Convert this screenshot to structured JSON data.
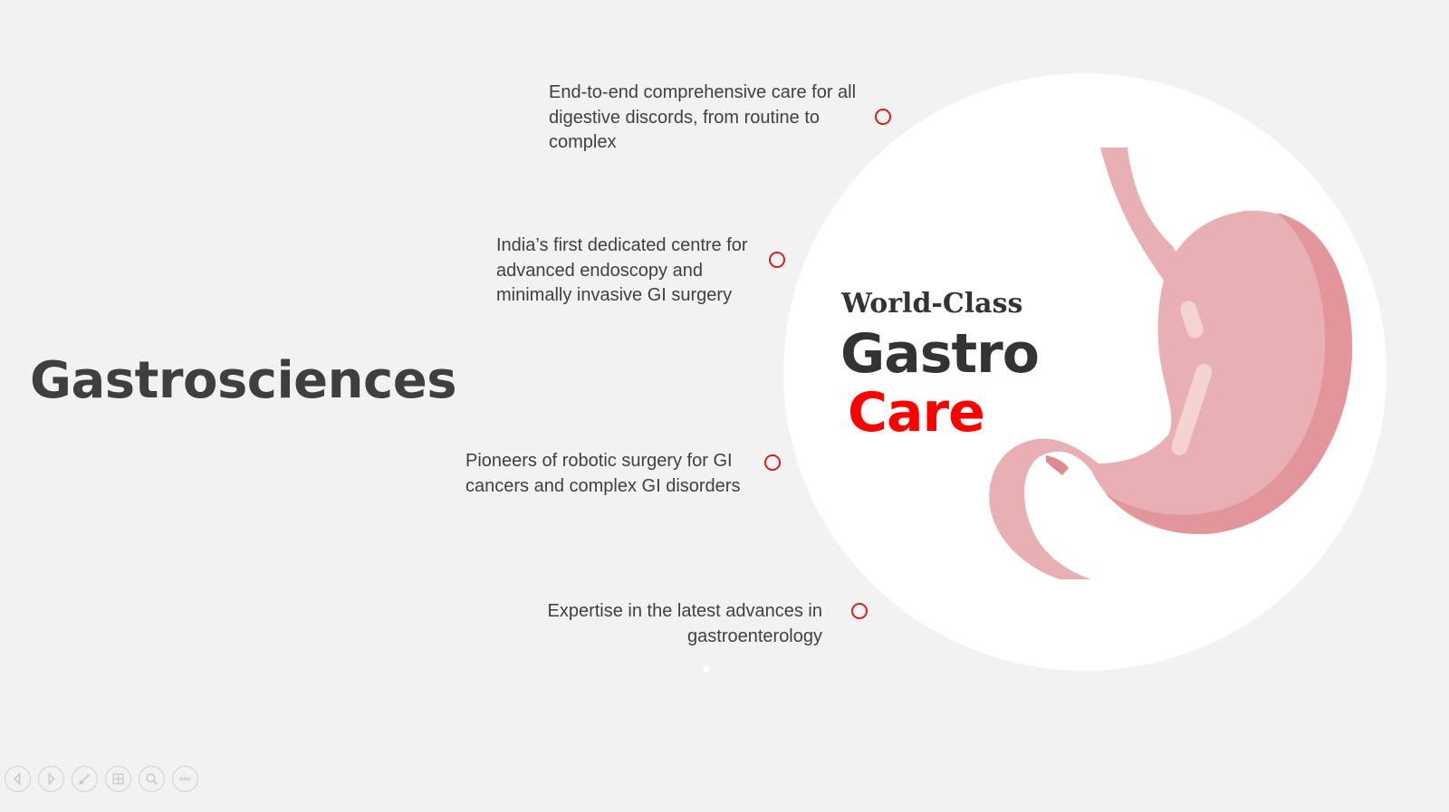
{
  "slide": {
    "title": "Gastrosciences",
    "hero": {
      "line1": "World-Class",
      "line2": "Gastro",
      "line3": "Care"
    },
    "features": [
      {
        "text": "End-to-end comprehensive care for all digestive discords, from routine to complex"
      },
      {
        "text": "India’s first dedicated centre for advanced endoscopy and minimally invasive GI surgery"
      },
      {
        "text": "Pioneers of robotic surgery for GI cancers and complex GI disorders"
      },
      {
        "text": "Expertise in the latest advances in gastroenterology"
      }
    ],
    "image": "stomach-illustration"
  },
  "colors": {
    "background": "#f2f2f2",
    "accent": "#ff0000",
    "dot_outline": "#d42020",
    "text_dark": "#3f3f3f",
    "stomach_light": "#e8b0b3",
    "stomach_dark": "#e2959a"
  },
  "toolbar": {
    "buttons": [
      {
        "icon": "previous-icon"
      },
      {
        "icon": "next-icon"
      },
      {
        "icon": "pen-icon"
      },
      {
        "icon": "slides-grid-icon"
      },
      {
        "icon": "zoom-icon"
      },
      {
        "icon": "more-options-icon"
      }
    ]
  }
}
